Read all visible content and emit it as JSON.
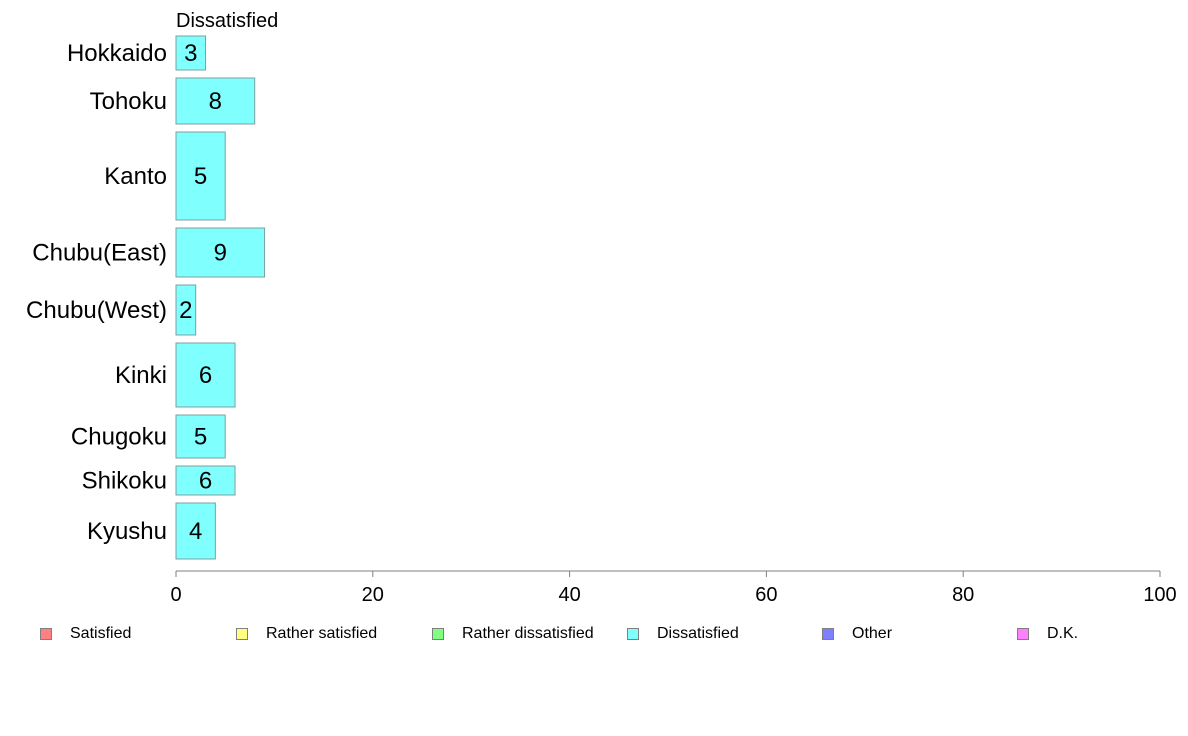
{
  "chart_data": {
    "type": "bar",
    "orientation": "horizontal",
    "title": "Dissatisfied",
    "xlabel": "",
    "ylabel": "",
    "xlim": [
      0,
      100
    ],
    "x_ticks": [
      0,
      20,
      40,
      60,
      80,
      100
    ],
    "grid": false,
    "categories": [
      "Hokkaido",
      "Tohoku",
      "Kanto",
      "Chubu(East)",
      "Chubu(West)",
      "Kinki",
      "Chugoku",
      "Shikoku",
      "Kyushu"
    ],
    "series": [
      {
        "name": "Dissatisfied",
        "values": [
          3,
          8,
          5,
          9,
          2,
          6,
          5,
          6,
          4
        ],
        "color": "#80ffff"
      }
    ],
    "data_labels": [
      "3",
      "8",
      "5",
      "9",
      "2",
      "6",
      "5",
      "6",
      "4"
    ],
    "legend": {
      "position": "bottom",
      "entries": [
        {
          "label": "Satisfied",
          "color": "#ff8080"
        },
        {
          "label": "Rather satisfied",
          "color": "#ffff80"
        },
        {
          "label": "Rather dissatisfied",
          "color": "#80ff80"
        },
        {
          "label": "Dissatisfied",
          "color": "#80ffff"
        },
        {
          "label": "Other",
          "color": "#8080ff"
        },
        {
          "label": "D.K.",
          "color": "#ff80ff"
        }
      ]
    }
  }
}
